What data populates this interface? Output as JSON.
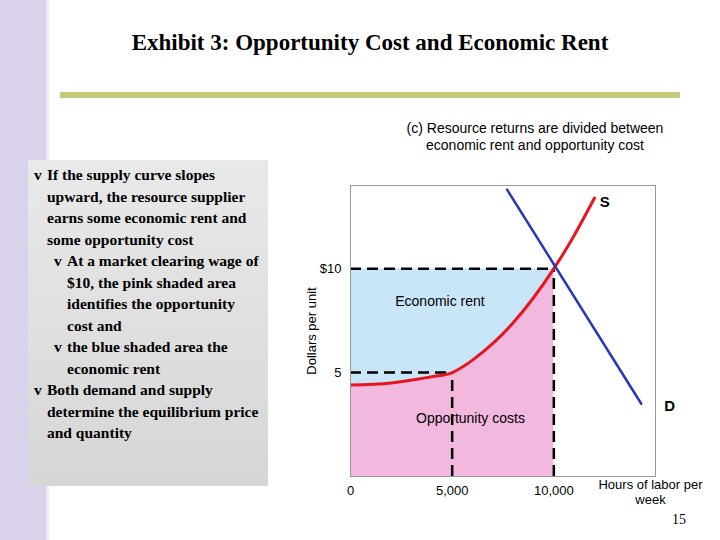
{
  "header": {
    "title": "Exhibit 3: Opportunity Cost and Economic Rent",
    "page_number": "15"
  },
  "text_box": {
    "bullet": "v",
    "items": [
      {
        "level": 1,
        "text": "If the supply curve slopes upward, the resource supplier earns some economic rent and some opportunity cost"
      },
      {
        "level": 2,
        "text": "At a market clearing wage of $10, the pink shaded area identifies the opportunity cost and"
      },
      {
        "level": 2,
        "text": "the blue shaded area the economic rent"
      },
      {
        "level": 1,
        "text": "Both demand and supply determine the equilibrium price and quantity"
      }
    ]
  },
  "chart_data": {
    "type": "line",
    "subtitle": "(c) Resource returns are divided between economic rent and opportunity cost",
    "x_label": "Hours of labor per week",
    "y_label": "Dollars per unit",
    "xlim": [
      0,
      15000
    ],
    "ylim": [
      0,
      14
    ],
    "xticks": [
      0,
      {
        "value": 5000,
        "label": "5,000"
      },
      {
        "value": 10000,
        "label": "10,000"
      }
    ],
    "yticks": [
      5,
      {
        "value": 10,
        "label": "$10"
      }
    ],
    "grid": false,
    "series": [
      {
        "name": "S",
        "color": "#e8141e",
        "label_x": 12500,
        "label_y": 13.2,
        "x": [
          0,
          2000,
          4000,
          5000,
          6000,
          7000,
          8000,
          9000,
          10000,
          11000,
          12000
        ],
        "values": [
          4.4,
          4.5,
          4.8,
          5,
          5.6,
          6.4,
          7.4,
          8.6,
          10,
          11.6,
          13.4
        ]
      },
      {
        "name": "D",
        "color": "#2438b8",
        "label_x": 15700,
        "label_y": 3.4,
        "x": [
          7700,
          14300
        ],
        "values": [
          13.8,
          3.5
        ]
      }
    ],
    "equilibrium": {
      "x": 10000,
      "y": 10
    },
    "guides": [
      {
        "x": 5000,
        "y": 5
      },
      {
        "x": 10000,
        "y": 10
      }
    ],
    "areas": [
      {
        "label": "Economic rent",
        "color": "#c9e6f8",
        "x": 4400,
        "y": 8.4
      },
      {
        "label": "Opportunity costs",
        "color": "#f2b8de",
        "x": 5900,
        "y": 2.8
      }
    ]
  }
}
